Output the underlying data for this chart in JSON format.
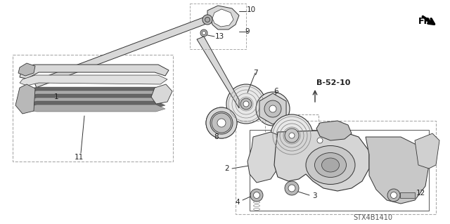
{
  "background_color": "#ffffff",
  "footer_text": "STX4B1410",
  "line_color": "#333333",
  "gray_fill": "#d8d8d8",
  "dark_fill": "#555555"
}
